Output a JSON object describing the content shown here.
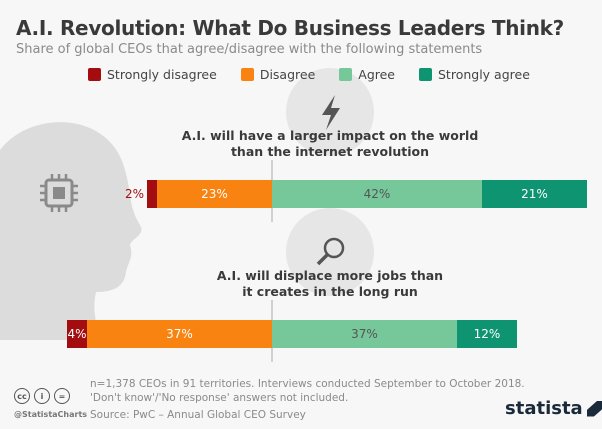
{
  "chart_data": {
    "type": "bar",
    "orientation": "horizontal-diverging",
    "title": "A.I. Revolution: What Do Business Leaders Think?",
    "subtitle": "Share of global CEOs that agree/disagree with the following statements",
    "legend": [
      "Strongly disagree",
      "Disagree",
      "Agree",
      "Strongly agree"
    ],
    "colors": [
      "#a30d10",
      "#f98310",
      "#76c89a",
      "#0e9470"
    ],
    "legend_position": "top",
    "categories": [
      "A.I. will have a larger impact on the world than the internet revolution",
      "A.I. will displace more jobs than it creates in the long run"
    ],
    "statement_lines": [
      [
        "A.I. will have a larger impact on the world",
        "than the internet revolution"
      ],
      [
        "A.I. will displace more jobs than",
        "it creates in the long run"
      ]
    ],
    "series": [
      {
        "name": "Strongly disagree",
        "values": [
          2,
          4
        ]
      },
      {
        "name": "Disagree",
        "values": [
          23,
          37
        ]
      },
      {
        "name": "Agree",
        "values": [
          42,
          37
        ]
      },
      {
        "name": "Strongly agree",
        "values": [
          21,
          12
        ]
      }
    ],
    "labels": [
      [
        "2%",
        "23%",
        "42%",
        "21%"
      ],
      [
        "4%",
        "37%",
        "37%",
        "12%"
      ]
    ]
  },
  "footer": {
    "note1": "n=1,378 CEOs in 91 territories. Interviews conducted September to October 2018.",
    "note2": "'Don't know'/'No response' answers not included.",
    "source": "Source: PwC – Annual Global CEO Survey",
    "handle": "@StatistaCharts",
    "brand": "statista"
  },
  "icons": [
    "head-chip-icon",
    "lightning-icon",
    "magnifier-icon"
  ]
}
